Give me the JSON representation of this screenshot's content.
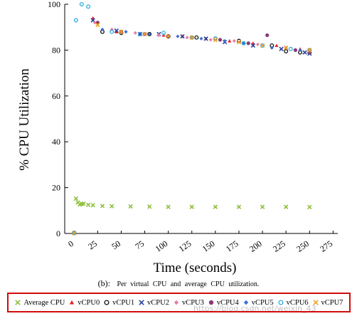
{
  "chart_data": {
    "type": "scatter",
    "xlabel": "Time (seconds)",
    "ylabel": "% CPU Utilization",
    "xlim": [
      -10,
      280
    ],
    "ylim": [
      0,
      100
    ],
    "xticks": [
      0,
      25,
      50,
      75,
      100,
      125,
      150,
      175,
      200,
      225,
      250,
      275
    ],
    "xtick_labels": [
      "0",
      "25",
      "50",
      "75",
      "100",
      "125",
      "150",
      "175",
      "200",
      "225",
      "250",
      "275"
    ],
    "yticks": [
      0,
      20,
      40,
      60,
      80,
      100
    ],
    "ytick_labels": [
      "0",
      "20",
      "40",
      "60",
      "80",
      "100"
    ],
    "grid": false,
    "legend_position": "bottom",
    "series": [
      {
        "name": "Average CPU",
        "marker": "x",
        "color": "#8fbf3f",
        "x": [
          2,
          4,
          6,
          8,
          10,
          15,
          20,
          30,
          40,
          60,
          80,
          100,
          125,
          150,
          175,
          200,
          225,
          250
        ],
        "y": [
          15.2,
          13.5,
          12.6,
          12.9,
          13.0,
          12.5,
          12.3,
          12.0,
          11.9,
          11.8,
          11.7,
          11.6,
          11.6,
          11.6,
          11.6,
          11.6,
          11.6,
          11.5
        ]
      },
      {
        "name": "vCPU0",
        "marker": "triangle",
        "color": "#e8231f",
        "x": [
          0,
          20,
          45,
          70,
          95,
          115,
          140,
          165,
          190,
          215,
          240,
          250
        ],
        "y": [
          0.2,
          94,
          88,
          87,
          86.5,
          86,
          85,
          84,
          83,
          82,
          80.5,
          80
        ]
      },
      {
        "name": "vCPU1",
        "marker": "circle-open",
        "color": "#111111",
        "x": [
          0,
          30,
          50,
          80,
          100,
          130,
          150,
          175,
          210,
          225,
          240,
          250
        ],
        "y": [
          0.2,
          88,
          87.5,
          87,
          86,
          85.5,
          85,
          84,
          82,
          79.5,
          79,
          79
        ]
      },
      {
        "name": "vCPU2",
        "marker": "x",
        "color": "#2a3f9e",
        "x": [
          0,
          20,
          45,
          70,
          90,
          115,
          140,
          160,
          190,
          220,
          245,
          250
        ],
        "y": [
          0.2,
          93,
          88.5,
          87,
          87,
          86,
          85,
          83.5,
          82,
          80.5,
          79,
          78.5
        ]
      },
      {
        "name": "vCPU3",
        "marker": "diamond",
        "color": "#e87fa8",
        "x": [
          0,
          22,
          40,
          65,
          90,
          120,
          145,
          170,
          195,
          225,
          250
        ],
        "y": [
          0.2,
          92,
          89,
          87.5,
          86.5,
          85.5,
          84.5,
          84,
          82.5,
          81,
          80
        ]
      },
      {
        "name": "vCPU4",
        "marker": "circle",
        "color": "#8a3a78",
        "x": [
          0,
          25,
          50,
          75,
          100,
          125,
          155,
          185,
          205,
          235,
          250
        ],
        "y": [
          0.2,
          92,
          88,
          87,
          86,
          85.5,
          84.5,
          83,
          86.5,
          80,
          79
        ]
      },
      {
        "name": "vCPU5",
        "marker": "diamond",
        "color": "#3f6fd1",
        "x": [
          0,
          30,
          55,
          80,
          110,
          135,
          160,
          180,
          210,
          240,
          250
        ],
        "y": [
          0.2,
          89,
          88,
          87,
          86,
          85,
          84,
          83,
          81,
          80,
          79.5
        ]
      },
      {
        "name": "vCPU6",
        "marker": "circle-open",
        "color": "#2aaee0",
        "x": [
          0,
          2,
          8,
          15,
          40,
          70,
          95,
          125,
          150,
          180,
          200,
          230,
          250
        ],
        "y": [
          0.2,
          93,
          100,
          99,
          88,
          87,
          87.5,
          85.5,
          85,
          83,
          82,
          80.5,
          80
        ]
      },
      {
        "name": "vCPU7",
        "marker": "x",
        "color": "#f0a020",
        "x": [
          0,
          25,
          50,
          75,
          100,
          125,
          150,
          175,
          200,
          225,
          250
        ],
        "y": [
          0.2,
          91,
          88,
          87,
          86,
          85.5,
          84.5,
          83.5,
          82,
          81,
          80
        ]
      }
    ]
  },
  "caption": {
    "tag": "(b):",
    "text": "Per virtual CPU and average CPU utilization."
  },
  "legend": {
    "items": [
      {
        "label": "Average CPU",
        "marker": "x",
        "color": "#8fbf3f"
      },
      {
        "label": "vCPU0",
        "marker": "triangle",
        "color": "#e8231f"
      },
      {
        "label": "vCPU1",
        "marker": "circle-open",
        "color": "#111111"
      },
      {
        "label": "vCPU2",
        "marker": "x",
        "color": "#2a3f9e"
      },
      {
        "label": "vCPU3",
        "marker": "diamond",
        "color": "#e87fa8"
      },
      {
        "label": "vCPU4",
        "marker": "circle",
        "color": "#8a3a78"
      },
      {
        "label": "vCPU5",
        "marker": "diamond",
        "color": "#3f6fd1"
      },
      {
        "label": "vCPU6",
        "marker": "circle-open",
        "color": "#2aaee0"
      },
      {
        "label": "vCPU7",
        "marker": "x",
        "color": "#f0a020"
      }
    ],
    "border_color": "#d10c0c"
  },
  "watermark": "https://blog.csdn.net/weixin_43"
}
